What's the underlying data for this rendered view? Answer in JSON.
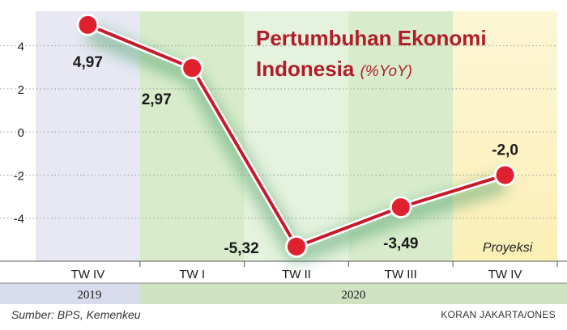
{
  "title_line1": "Pertumbuhan Ekonomi",
  "title_line2": "Indonesia",
  "title_unit": "(%YoY)",
  "source": "Sumber: BPS, Kemenkeu",
  "credit": "KORAN JAKARTA/ONES",
  "colors": {
    "line": "#c8192b",
    "marker": "#e0202e",
    "title": "#b01c2a",
    "band_2019": "#e7e8f3",
    "band_2020": "#d8eccb",
    "band_projection": "#fbefb6",
    "glow": "#4e9e68"
  },
  "chart_data": {
    "type": "line",
    "categories": [
      "TW IV",
      "TW I",
      "TW II",
      "TW III",
      "TW IV"
    ],
    "years": [
      {
        "label": "2019",
        "categories": [
          "TW IV"
        ]
      },
      {
        "label": "2020",
        "categories": [
          "TW I",
          "TW II",
          "TW III",
          "TW IV"
        ]
      }
    ],
    "series": [
      {
        "values": [
          4.97,
          2.97,
          -5.32,
          -3.49,
          -2.0
        ]
      }
    ],
    "data_labels": [
      "4,97",
      "2,97",
      "-5,32",
      "-3,49",
      "-2,0"
    ],
    "yticks": [
      4,
      2,
      0,
      -2,
      -4
    ],
    "ytick_labels": [
      "4",
      "2",
      "0",
      "-2",
      "-4"
    ],
    "ylim": [
      -6,
      5.6
    ],
    "projection_index": 4,
    "annotation": "Proyeksi",
    "grid": true
  }
}
